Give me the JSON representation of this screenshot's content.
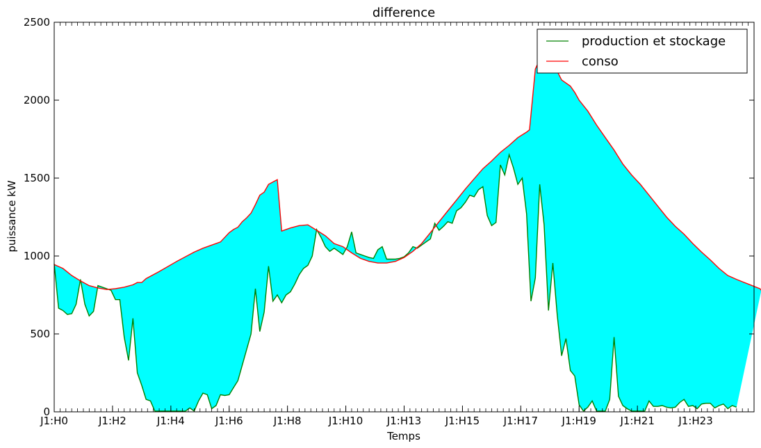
{
  "chart_data": {
    "type": "area",
    "title": "difference",
    "xlabel": "Temps",
    "ylabel": "puissance kW",
    "xlim": [
      0,
      24
    ],
    "ylim": [
      0,
      2500
    ],
    "yticks": [
      0,
      500,
      1000,
      1500,
      2000,
      2500
    ],
    "xticks": [
      {
        "x": 0,
        "label": "J1:H0"
      },
      {
        "x": 2,
        "label": "J1:H2"
      },
      {
        "x": 4,
        "label": "J1:H4"
      },
      {
        "x": 6,
        "label": "J1:H6"
      },
      {
        "x": 8,
        "label": "J1:H8"
      },
      {
        "x": 10,
        "label": "J1:H10"
      },
      {
        "x": 12,
        "label": "J1:H13"
      },
      {
        "x": 14,
        "label": "J1:H15"
      },
      {
        "x": 16,
        "label": "J1:H17"
      },
      {
        "x": 18,
        "label": "J1:H19"
      },
      {
        "x": 20,
        "label": "J1:H21"
      },
      {
        "x": 22,
        "label": "J1:H23"
      }
    ],
    "legend": {
      "placement": "upper right"
    },
    "fill_color": "#00ffff",
    "series": [
      {
        "name": "production et stockage",
        "color": "#008000",
        "points": [
          [
            0,
            950
          ],
          [
            0.15,
            665
          ],
          [
            0.3,
            650
          ],
          [
            0.45,
            625
          ],
          [
            0.6,
            630
          ],
          [
            0.75,
            690
          ],
          [
            0.9,
            850
          ],
          [
            1.05,
            690
          ],
          [
            1.2,
            615
          ],
          [
            1.35,
            645
          ],
          [
            1.5,
            810
          ],
          [
            1.65,
            800
          ],
          [
            1.8,
            790
          ],
          [
            1.95,
            780
          ],
          [
            2.1,
            720
          ],
          [
            2.25,
            720
          ],
          [
            2.4,
            480
          ],
          [
            2.55,
            330
          ],
          [
            2.7,
            600
          ],
          [
            2.85,
            250
          ],
          [
            3,
            170
          ],
          [
            3.15,
            80
          ],
          [
            3.3,
            70
          ],
          [
            3.45,
            5
          ],
          [
            3.6,
            5
          ],
          [
            3.75,
            5
          ],
          [
            3.9,
            5
          ],
          [
            4.05,
            5
          ],
          [
            4.2,
            5
          ],
          [
            4.35,
            5
          ],
          [
            4.5,
            5
          ],
          [
            4.65,
            25
          ],
          [
            4.8,
            5
          ],
          [
            4.95,
            70
          ],
          [
            5.1,
            120
          ],
          [
            5.25,
            110
          ],
          [
            5.4,
            20
          ],
          [
            5.55,
            40
          ],
          [
            5.7,
            110
          ],
          [
            5.85,
            105
          ],
          [
            6,
            110
          ],
          [
            6.15,
            155
          ],
          [
            6.3,
            200
          ],
          [
            6.45,
            300
          ],
          [
            6.6,
            400
          ],
          [
            6.75,
            500
          ],
          [
            6.9,
            790
          ],
          [
            7.05,
            515
          ],
          [
            7.2,
            640
          ],
          [
            7.35,
            935
          ],
          [
            7.5,
            710
          ],
          [
            7.65,
            750
          ],
          [
            7.8,
            700
          ],
          [
            7.95,
            750
          ],
          [
            8.1,
            770
          ],
          [
            8.25,
            820
          ],
          [
            8.4,
            880
          ],
          [
            8.55,
            920
          ],
          [
            8.7,
            940
          ],
          [
            8.85,
            1000
          ],
          [
            9,
            1170
          ],
          [
            9.15,
            1120
          ],
          [
            9.3,
            1060
          ],
          [
            9.45,
            1030
          ],
          [
            9.6,
            1050
          ],
          [
            9.75,
            1030
          ],
          [
            9.9,
            1010
          ],
          [
            10.05,
            1060
          ],
          [
            10.2,
            1155
          ],
          [
            10.35,
            1020
          ],
          [
            10.5,
            1010
          ],
          [
            10.65,
            1000
          ],
          [
            10.8,
            990
          ],
          [
            10.95,
            985
          ],
          [
            11.1,
            1040
          ],
          [
            11.25,
            1060
          ],
          [
            11.4,
            980
          ],
          [
            11.55,
            980
          ],
          [
            11.7,
            980
          ],
          [
            11.85,
            985
          ],
          [
            12,
            995
          ],
          [
            12.15,
            1020
          ],
          [
            12.3,
            1060
          ],
          [
            12.45,
            1050
          ],
          [
            12.6,
            1070
          ],
          [
            12.75,
            1090
          ],
          [
            12.9,
            1110
          ],
          [
            13.05,
            1210
          ],
          [
            13.2,
            1165
          ],
          [
            13.35,
            1190
          ],
          [
            13.5,
            1220
          ],
          [
            13.65,
            1210
          ],
          [
            13.8,
            1290
          ],
          [
            13.95,
            1310
          ],
          [
            14.1,
            1345
          ],
          [
            14.25,
            1390
          ],
          [
            14.4,
            1380
          ],
          [
            14.55,
            1425
          ],
          [
            14.7,
            1445
          ],
          [
            14.85,
            1260
          ],
          [
            15,
            1195
          ],
          [
            15.15,
            1215
          ],
          [
            15.3,
            1585
          ],
          [
            15.45,
            1520
          ],
          [
            15.6,
            1650
          ],
          [
            15.75,
            1565
          ],
          [
            15.9,
            1460
          ],
          [
            16.05,
            1500
          ],
          [
            16.2,
            1270
          ],
          [
            16.35,
            710
          ],
          [
            16.5,
            860
          ],
          [
            16.65,
            1460
          ],
          [
            16.8,
            1200
          ],
          [
            16.95,
            650
          ],
          [
            17.1,
            955
          ],
          [
            17.25,
            620
          ],
          [
            17.4,
            360
          ],
          [
            17.55,
            470
          ],
          [
            17.7,
            265
          ],
          [
            17.85,
            230
          ],
          [
            18,
            45
          ],
          [
            18.15,
            5
          ],
          [
            18.3,
            30
          ],
          [
            18.45,
            70
          ],
          [
            18.6,
            5
          ],
          [
            18.75,
            5
          ],
          [
            18.9,
            5
          ],
          [
            19.05,
            80
          ],
          [
            19.2,
            480
          ],
          [
            19.35,
            100
          ],
          [
            19.5,
            40
          ],
          [
            19.65,
            20
          ],
          [
            19.8,
            5
          ],
          [
            19.95,
            5
          ],
          [
            20.1,
            5
          ],
          [
            20.25,
            5
          ],
          [
            20.4,
            70
          ],
          [
            20.55,
            35
          ],
          [
            20.7,
            35
          ],
          [
            20.85,
            40
          ],
          [
            21,
            30
          ],
          [
            21.15,
            25
          ],
          [
            21.3,
            30
          ],
          [
            21.45,
            60
          ],
          [
            21.6,
            80
          ],
          [
            21.75,
            35
          ],
          [
            21.9,
            40
          ],
          [
            22.05,
            20
          ],
          [
            22.2,
            50
          ],
          [
            22.35,
            55
          ],
          [
            22.5,
            55
          ],
          [
            22.65,
            25
          ],
          [
            22.8,
            40
          ],
          [
            22.95,
            50
          ],
          [
            23.1,
            20
          ],
          [
            23.25,
            40
          ],
          [
            23.4,
            30
          ]
        ]
      },
      {
        "name": "conso",
        "color": "#ff0000",
        "points": [
          [
            0,
            945
          ],
          [
            0.3,
            920
          ],
          [
            0.6,
            875
          ],
          [
            0.9,
            840
          ],
          [
            1.2,
            810
          ],
          [
            1.5,
            795
          ],
          [
            1.8,
            785
          ],
          [
            2.1,
            790
          ],
          [
            2.4,
            800
          ],
          [
            2.7,
            815
          ],
          [
            2.85,
            830
          ],
          [
            3,
            830
          ],
          [
            3.15,
            855
          ],
          [
            3.6,
            900
          ],
          [
            4.2,
            965
          ],
          [
            4.8,
            1025
          ],
          [
            5.1,
            1050
          ],
          [
            5.4,
            1070
          ],
          [
            5.7,
            1090
          ],
          [
            6,
            1150
          ],
          [
            6.15,
            1170
          ],
          [
            6.3,
            1185
          ],
          [
            6.45,
            1220
          ],
          [
            6.6,
            1245
          ],
          [
            6.75,
            1275
          ],
          [
            6.9,
            1330
          ],
          [
            7.05,
            1390
          ],
          [
            7.2,
            1410
          ],
          [
            7.35,
            1460
          ],
          [
            7.5,
            1475
          ],
          [
            7.65,
            1490
          ],
          [
            7.8,
            1160
          ],
          [
            8.1,
            1180
          ],
          [
            8.4,
            1195
          ],
          [
            8.7,
            1200
          ],
          [
            9,
            1165
          ],
          [
            9.3,
            1130
          ],
          [
            9.6,
            1080
          ],
          [
            9.9,
            1060
          ],
          [
            10.2,
            1020
          ],
          [
            10.5,
            985
          ],
          [
            10.8,
            965
          ],
          [
            11.1,
            955
          ],
          [
            11.4,
            955
          ],
          [
            11.7,
            965
          ],
          [
            12,
            990
          ],
          [
            12.3,
            1030
          ],
          [
            12.6,
            1080
          ],
          [
            12.9,
            1150
          ],
          [
            13.2,
            1220
          ],
          [
            13.5,
            1290
          ],
          [
            13.8,
            1360
          ],
          [
            14.1,
            1430
          ],
          [
            14.4,
            1495
          ],
          [
            14.7,
            1560
          ],
          [
            15,
            1610
          ],
          [
            15.3,
            1665
          ],
          [
            15.6,
            1710
          ],
          [
            15.9,
            1760
          ],
          [
            16.2,
            1795
          ],
          [
            16.3,
            1810
          ],
          [
            16.5,
            2200
          ],
          [
            16.6,
            2240
          ],
          [
            17.1,
            2240
          ],
          [
            17.4,
            2130
          ],
          [
            17.7,
            2090
          ],
          [
            17.85,
            2050
          ],
          [
            18,
            2000
          ],
          [
            18.3,
            1930
          ],
          [
            18.6,
            1840
          ],
          [
            18.9,
            1760
          ],
          [
            19.2,
            1680
          ],
          [
            19.5,
            1590
          ],
          [
            19.8,
            1520
          ],
          [
            20.1,
            1460
          ],
          [
            20.4,
            1390
          ],
          [
            20.7,
            1320
          ],
          [
            21,
            1250
          ],
          [
            21.3,
            1190
          ],
          [
            21.6,
            1140
          ],
          [
            21.9,
            1080
          ],
          [
            22.2,
            1025
          ],
          [
            22.5,
            975
          ],
          [
            22.8,
            920
          ],
          [
            23.1,
            875
          ],
          [
            23.4,
            850
          ],
          [
            23.6,
            835
          ],
          [
            23.8,
            820
          ],
          [
            24,
            805
          ],
          [
            24.2,
            790
          ],
          [
            24.25,
            780
          ]
        ]
      }
    ]
  }
}
